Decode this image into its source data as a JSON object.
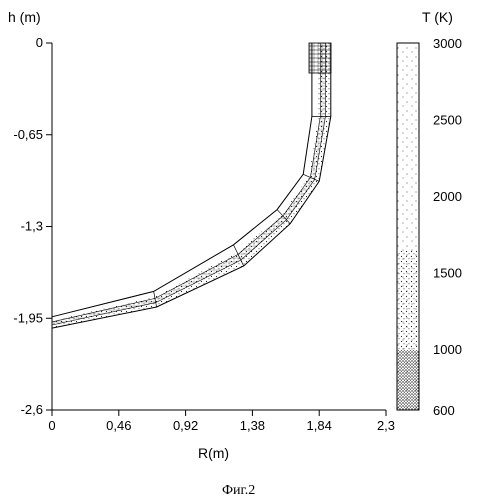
{
  "figure": {
    "caption": "Фиг.2"
  },
  "chart_data": {
    "type": "cross-section profile with temperature colorbar",
    "x_axis": {
      "label": "R(m)",
      "ticks": [
        "0",
        "0,46",
        "0,92",
        "1,38",
        "1,84",
        "2,3"
      ],
      "range": [
        0,
        2.3
      ]
    },
    "y_axis": {
      "label": "h (m)",
      "ticks": [
        "0",
        "-0,65",
        "-1,3",
        "-1,95",
        "-2,6"
      ],
      "range": [
        -2.6,
        0
      ]
    },
    "colorbar": {
      "label": "T (K)",
      "ticks": [
        "3000",
        "2500",
        "2000",
        "1500",
        "1000",
        "600"
      ],
      "range": [
        600,
        3000
      ]
    },
    "outer_profile": [
      [
        0,
        -1.94
      ],
      [
        0.7,
        -1.76
      ],
      [
        1.25,
        -1.43
      ],
      [
        1.55,
        -1.18
      ],
      [
        1.73,
        -0.93
      ],
      [
        1.79,
        -0.52
      ],
      [
        1.79,
        0
      ]
    ],
    "inner_profile": [
      [
        0,
        -2.02
      ],
      [
        0.72,
        -1.87
      ],
      [
        1.32,
        -1.58
      ],
      [
        1.64,
        -1.28
      ],
      [
        1.84,
        -0.98
      ],
      [
        1.92,
        -0.52
      ],
      [
        1.92,
        0
      ]
    ]
  }
}
